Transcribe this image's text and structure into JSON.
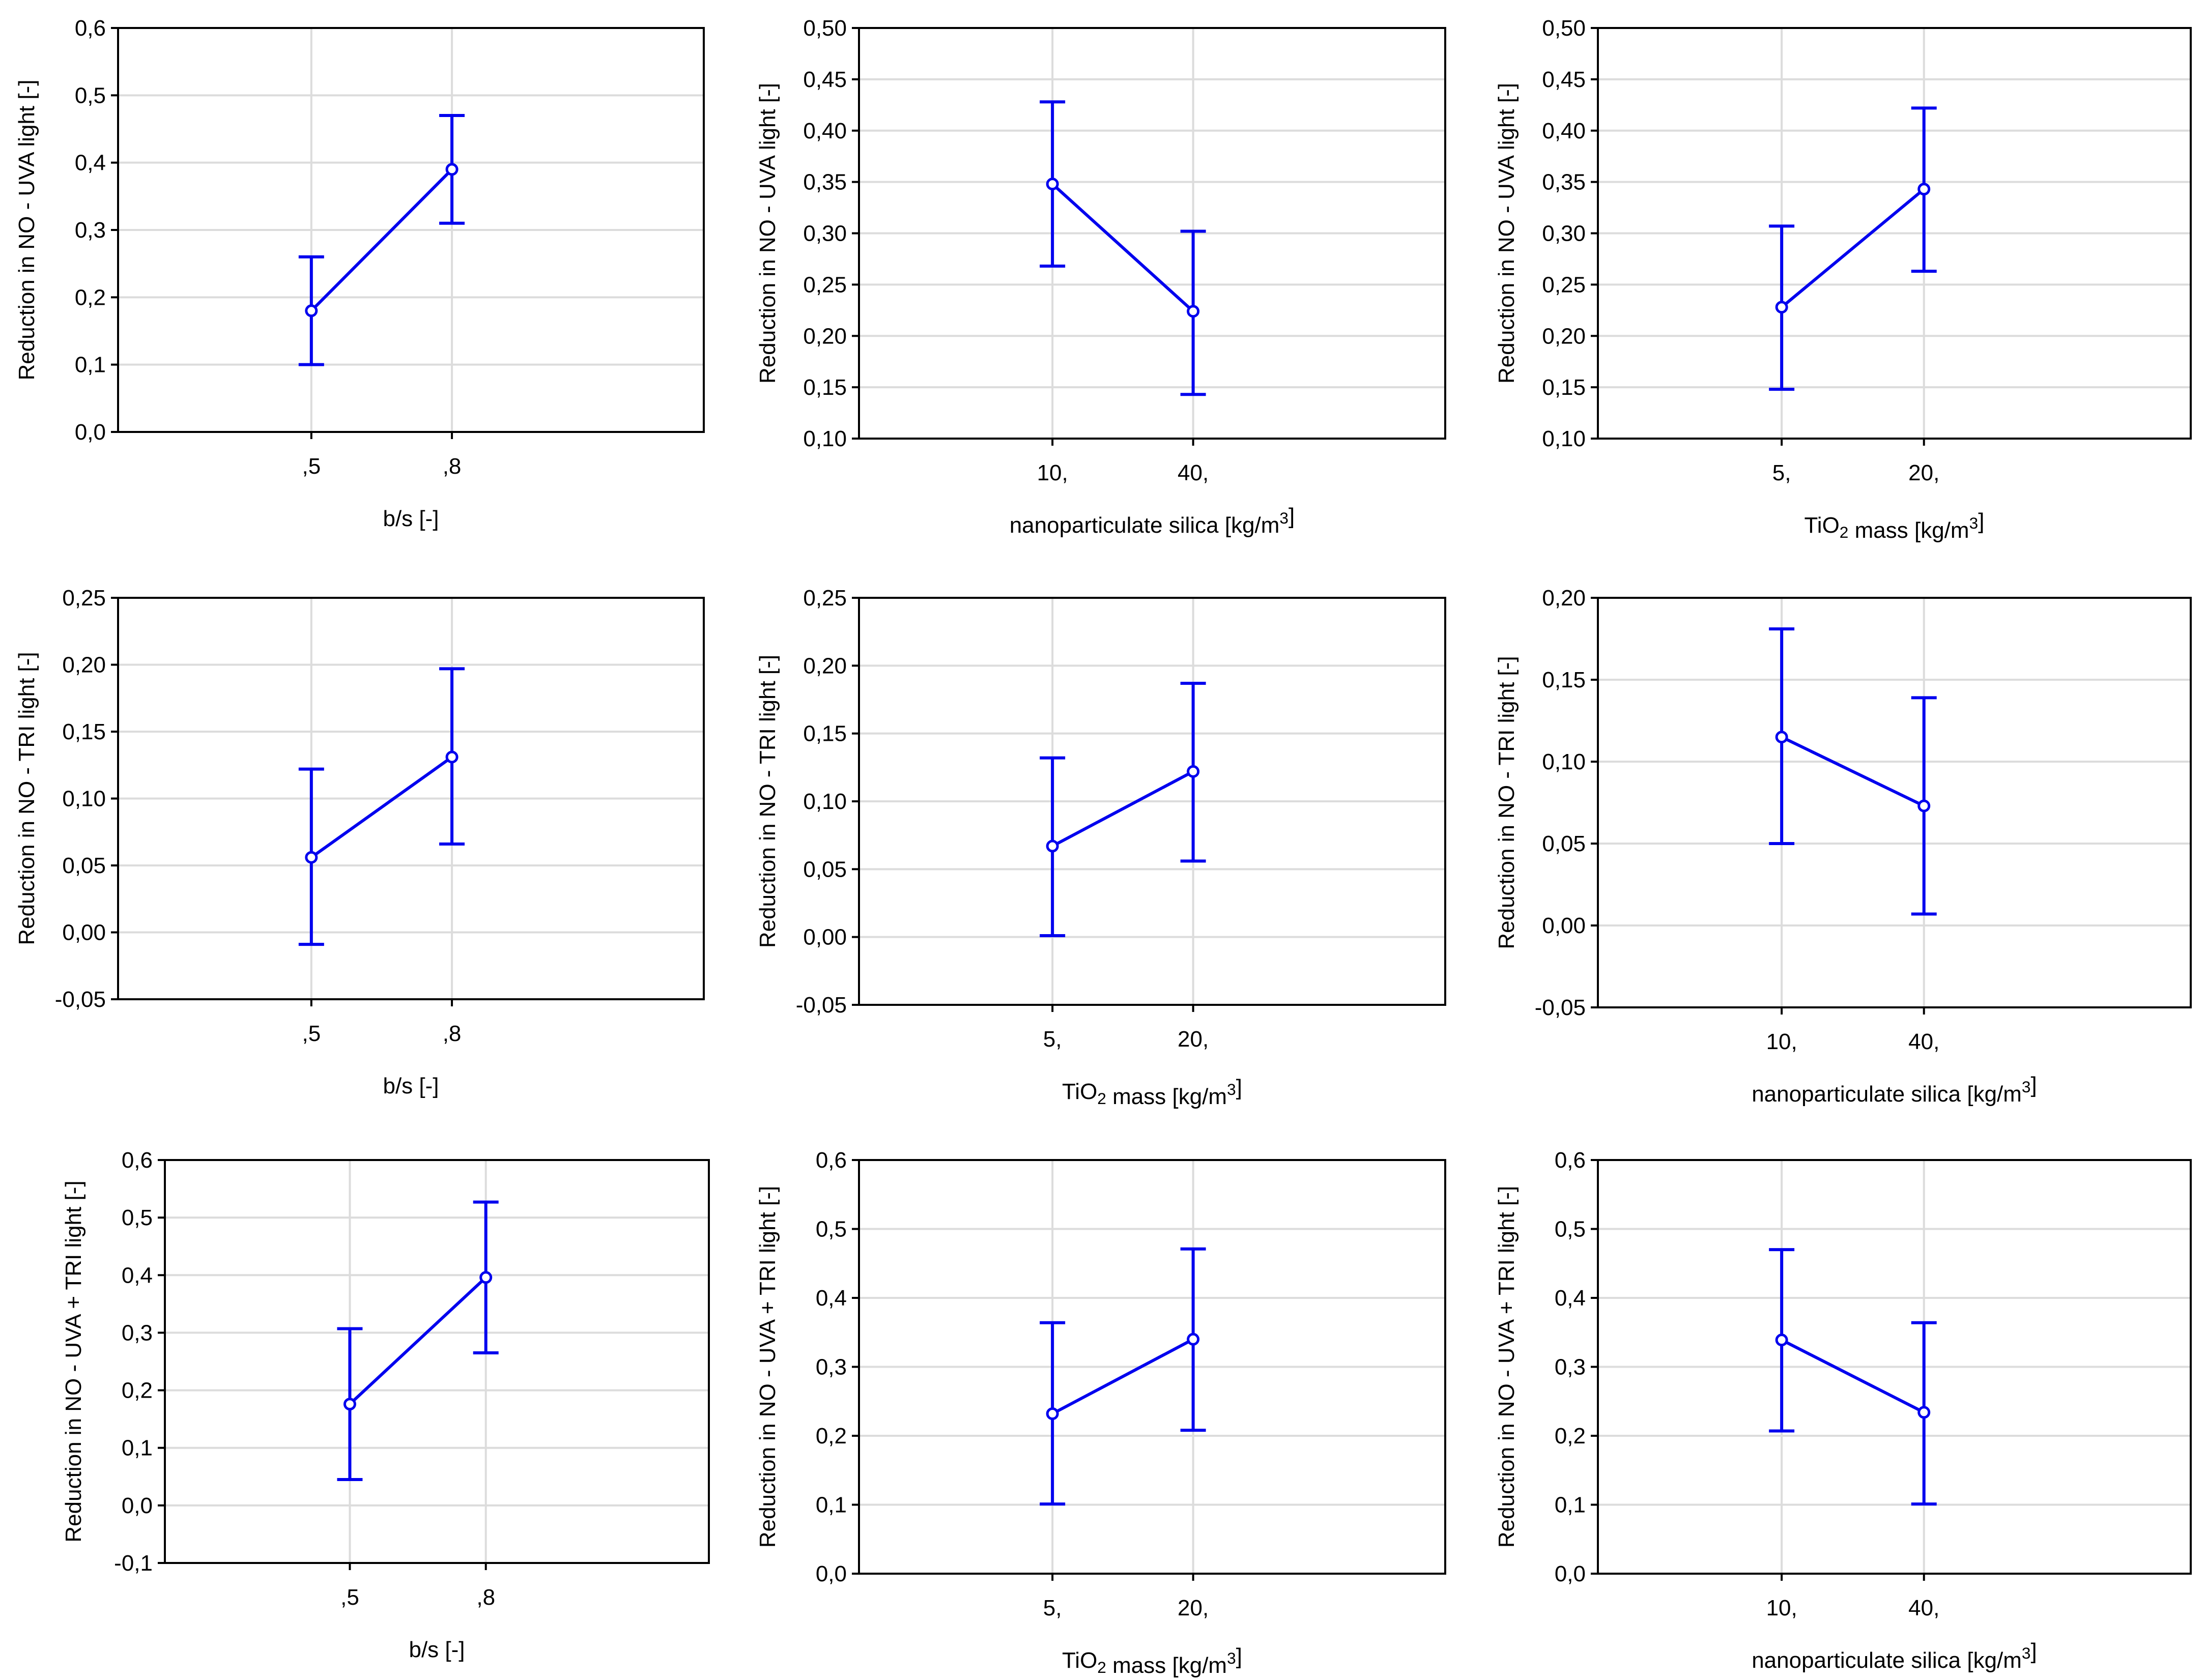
{
  "figure": {
    "line_color": "#0000ee",
    "grid_color": "#dcdcdc",
    "axis_color": "#000000"
  },
  "chart_data": [
    {
      "type": "line",
      "ylabel": "Reduction in NO - UVA light [-]",
      "xlabel": "b/s [-]",
      "categories": [
        ",5",
        ",8"
      ],
      "means": [
        0.18,
        0.39
      ],
      "lower": [
        0.1,
        0.31
      ],
      "upper": [
        0.26,
        0.47
      ],
      "ylim": [
        0.0,
        0.6
      ],
      "yticks": [
        "0,0",
        "0,1",
        "0,2",
        "0,3",
        "0,4",
        "0,5",
        "0,6"
      ],
      "grid": true
    },
    {
      "type": "line",
      "ylabel": "Reduction in NO - UVA light [-]",
      "xlabel": "nanoparticulate silica [kg/m3]",
      "categories": [
        "10,",
        "40,"
      ],
      "means": [
        0.348,
        0.224
      ],
      "lower": [
        0.268,
        0.143
      ],
      "upper": [
        0.428,
        0.302
      ],
      "ylim": [
        0.1,
        0.5
      ],
      "yticks": [
        "0,10",
        "0,15",
        "0,20",
        "0,25",
        "0,30",
        "0,35",
        "0,40",
        "0,45",
        "0,50"
      ],
      "grid": true
    },
    {
      "type": "line",
      "ylabel": "Reduction in NO - UVA light [-]",
      "xlabel": "TiO2 mass [kg/m3]",
      "categories": [
        "5,",
        "20,"
      ],
      "means": [
        0.228,
        0.343
      ],
      "lower": [
        0.148,
        0.263
      ],
      "upper": [
        0.307,
        0.422
      ],
      "ylim": [
        0.1,
        0.5
      ],
      "yticks": [
        "0,10",
        "0,15",
        "0,20",
        "0,25",
        "0,30",
        "0,35",
        "0,40",
        "0,45",
        "0,50"
      ],
      "grid": true
    },
    {
      "type": "line",
      "ylabel": "Reduction in NO - TRI light [-]",
      "xlabel": "b/s [-]",
      "categories": [
        ",5",
        ",8"
      ],
      "means": [
        0.056,
        0.131
      ],
      "lower": [
        -0.009,
        0.066
      ],
      "upper": [
        0.122,
        0.197
      ],
      "ylim": [
        -0.05,
        0.25
      ],
      "yticks": [
        "-0,05",
        "0,00",
        "0,05",
        "0,10",
        "0,15",
        "0,20",
        "0,25"
      ],
      "grid": true
    },
    {
      "type": "line",
      "ylabel": "Reduction in NO - TRI light [-]",
      "xlabel": "TiO2 mass [kg/m3]",
      "categories": [
        "5,",
        "20,"
      ],
      "means": [
        0.067,
        0.122
      ],
      "lower": [
        0.001,
        0.056
      ],
      "upper": [
        0.132,
        0.187
      ],
      "ylim": [
        -0.05,
        0.25
      ],
      "yticks": [
        "-0,05",
        "0,00",
        "0,05",
        "0,10",
        "0,15",
        "0,20",
        "0,25"
      ],
      "grid": true
    },
    {
      "type": "line",
      "ylabel": "Reduction in NO - TRI light [-]",
      "xlabel": "nanoparticulate silica [kg/m3]",
      "categories": [
        "10,",
        "40,"
      ],
      "means": [
        0.115,
        0.073
      ],
      "lower": [
        0.05,
        0.007
      ],
      "upper": [
        0.181,
        0.139
      ],
      "ylim": [
        -0.05,
        0.2
      ],
      "yticks": [
        "-0,05",
        "0,00",
        "0,05",
        "0,10",
        "0,15",
        "0,20"
      ],
      "grid": true
    },
    {
      "type": "line",
      "ylabel": "Reduction in NO - UVA + TRI light [-]",
      "xlabel": "b/s [-]",
      "categories": [
        ",5",
        ",8"
      ],
      "means": [
        0.176,
        0.396
      ],
      "lower": [
        0.045,
        0.265
      ],
      "upper": [
        0.307,
        0.527
      ],
      "ylim": [
        -0.1,
        0.6
      ],
      "yticks": [
        "-0,1",
        "0,0",
        "0,1",
        "0,2",
        "0,3",
        "0,4",
        "0,5",
        "0,6"
      ],
      "grid": true
    },
    {
      "type": "line",
      "ylabel": "Reduction in NO - UVA + TRI light [-]",
      "xlabel": "TiO2 mass [kg/m3]",
      "categories": [
        "5,",
        "20,"
      ],
      "means": [
        0.232,
        0.34
      ],
      "lower": [
        0.101,
        0.208
      ],
      "upper": [
        0.364,
        0.471
      ],
      "ylim": [
        0.0,
        0.6
      ],
      "yticks": [
        "0,0",
        "0,1",
        "0,2",
        "0,3",
        "0,4",
        "0,5",
        "0,6"
      ],
      "grid": true
    },
    {
      "type": "line",
      "ylabel": "Reduction in NO - UVA + TRI light [-]",
      "xlabel": "nanoparticulate silica [kg/m3]",
      "categories": [
        "10,",
        "40,"
      ],
      "means": [
        0.339,
        0.234
      ],
      "lower": [
        0.207,
        0.101
      ],
      "upper": [
        0.47,
        0.364
      ],
      "ylim": [
        0.0,
        0.6
      ],
      "yticks": [
        "0,0",
        "0,1",
        "0,2",
        "0,3",
        "0,4",
        "0,5",
        "0,6"
      ],
      "grid": true
    }
  ]
}
